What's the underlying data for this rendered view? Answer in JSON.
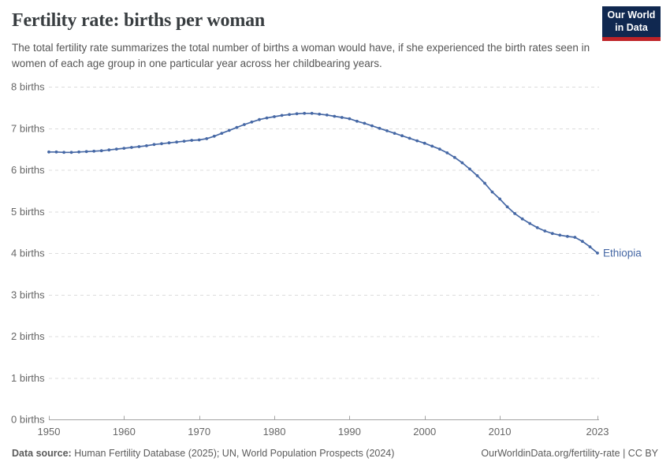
{
  "header": {
    "title": "Fertility rate: births per woman",
    "subtitle": "The total fertility rate summarizes the total number of births a woman would have, if she experienced the birth rates seen in women of each age group in one particular year across her childbearing years.",
    "logo": {
      "line1": "Our World",
      "line2": "in Data",
      "bg_color": "#102850",
      "stripe_color": "#be2328"
    }
  },
  "chart_data": {
    "type": "line",
    "title": "Fertility rate: births per woman",
    "unit_suffix": " births",
    "xlim": [
      1950,
      2023
    ],
    "ylim": [
      0,
      8
    ],
    "x_ticks": [
      1950,
      1960,
      1970,
      1980,
      1990,
      2000,
      2010,
      2023
    ],
    "y_ticks": [
      0,
      1,
      2,
      3,
      4,
      5,
      6,
      7,
      8
    ],
    "grid": "dashed",
    "legend_position": "end-of-line-label",
    "x": [
      1950,
      1951,
      1952,
      1953,
      1954,
      1955,
      1956,
      1957,
      1958,
      1959,
      1960,
      1961,
      1962,
      1963,
      1964,
      1965,
      1966,
      1967,
      1968,
      1969,
      1970,
      1971,
      1972,
      1973,
      1974,
      1975,
      1976,
      1977,
      1978,
      1979,
      1980,
      1981,
      1982,
      1983,
      1984,
      1985,
      1986,
      1987,
      1988,
      1989,
      1990,
      1991,
      1992,
      1993,
      1994,
      1995,
      1996,
      1997,
      1998,
      1999,
      2000,
      2001,
      2002,
      2003,
      2004,
      2005,
      2006,
      2007,
      2008,
      2009,
      2010,
      2011,
      2012,
      2013,
      2014,
      2015,
      2016,
      2017,
      2018,
      2019,
      2020,
      2021,
      2022,
      2023
    ],
    "series": [
      {
        "name": "Ethiopia",
        "color": "#4668a5",
        "values": [
          6.43,
          6.43,
          6.42,
          6.42,
          6.43,
          6.44,
          6.45,
          6.46,
          6.48,
          6.5,
          6.52,
          6.54,
          6.56,
          6.58,
          6.61,
          6.63,
          6.65,
          6.67,
          6.69,
          6.71,
          6.72,
          6.75,
          6.81,
          6.88,
          6.95,
          7.02,
          7.09,
          7.15,
          7.21,
          7.25,
          7.28,
          7.31,
          7.33,
          7.35,
          7.36,
          7.36,
          7.34,
          7.32,
          7.29,
          7.26,
          7.23,
          7.17,
          7.12,
          7.06,
          7.0,
          6.94,
          6.88,
          6.82,
          6.76,
          6.7,
          6.64,
          6.57,
          6.5,
          6.41,
          6.3,
          6.17,
          6.02,
          5.86,
          5.68,
          5.47,
          5.3,
          5.11,
          4.95,
          4.82,
          4.71,
          4.61,
          4.53,
          4.47,
          4.43,
          4.4,
          4.38,
          4.28,
          4.15,
          4.0
        ]
      }
    ],
    "colors": {
      "grid": "#dcdcdc",
      "axis": "#a3a3a3",
      "tick_label": "#666666"
    }
  },
  "footer": {
    "source_label": "Data source:",
    "source_value": "Human Fertility Database (2025); UN, World Population Prospects (2024)",
    "link": "OurWorldinData.org/fertility-rate | CC BY"
  }
}
